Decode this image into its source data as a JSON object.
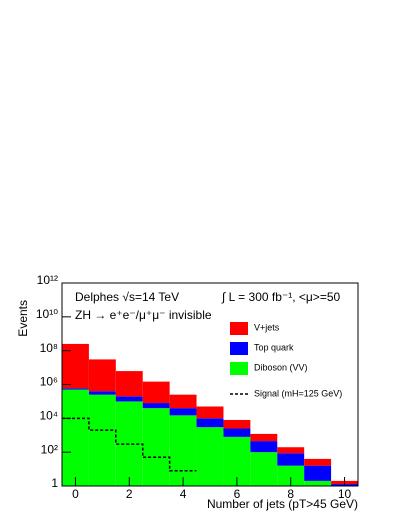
{
  "chart_data": {
    "type": "histogram",
    "stacked": true,
    "log_y": true,
    "x_label": "Number of jets (pT>45 GeV)",
    "y_label": "Events",
    "annotations": [
      "Delphes √s=14 TeV",
      "ZH → e⁺e⁻/μ⁺μ⁻ invisible",
      "∫ L = 300 fb⁻¹, <μ>=50"
    ],
    "bins": [
      -0.5,
      0.5,
      1.5,
      2.5,
      3.5,
      4.5,
      5.5,
      6.5,
      7.5,
      8.5,
      9.5,
      10.5
    ],
    "series": [
      {
        "name": "V+jets",
        "color": "#ff0000",
        "values": [
          250000000,
          30000000,
          6000000,
          1400000,
          210000,
          40000,
          5500,
          750,
          110,
          24,
          0.7
        ]
      },
      {
        "name": "Top quark",
        "color": "#0000ff",
        "values": [
          100000,
          150000,
          100000,
          40000,
          25000,
          7000,
          1700,
          350,
          70,
          14,
          0.3
        ]
      },
      {
        "name": "Diboson (VV)",
        "color": "#00ff00",
        "values": [
          500000,
          250000,
          100000,
          40000,
          15000,
          3000,
          800,
          100,
          16,
          2,
          1
        ]
      },
      {
        "name": "Signal (mH=125 GeV)",
        "color": "#000000",
        "stacked": false,
        "dashed": true,
        "values": [
          10000,
          2000,
          300,
          50,
          8,
          null,
          null,
          null,
          null,
          null,
          null
        ]
      }
    ],
    "xlim": [
      -0.5,
      10.5
    ],
    "xticks": [
      0,
      2,
      4,
      6,
      8,
      10
    ],
    "ylim": [
      1,
      1000000000000
    ],
    "yticks": [
      1,
      {
        "value": 100,
        "label": "10²"
      },
      {
        "value": 10000,
        "label": "10⁴"
      },
      {
        "value": 1000000,
        "label": "10⁶"
      },
      {
        "value": 100000000,
        "label": "10⁸"
      },
      {
        "value": 10000000000,
        "label": "10¹⁰"
      },
      {
        "value": 1000000000000,
        "label": "10¹²"
      }
    ]
  }
}
